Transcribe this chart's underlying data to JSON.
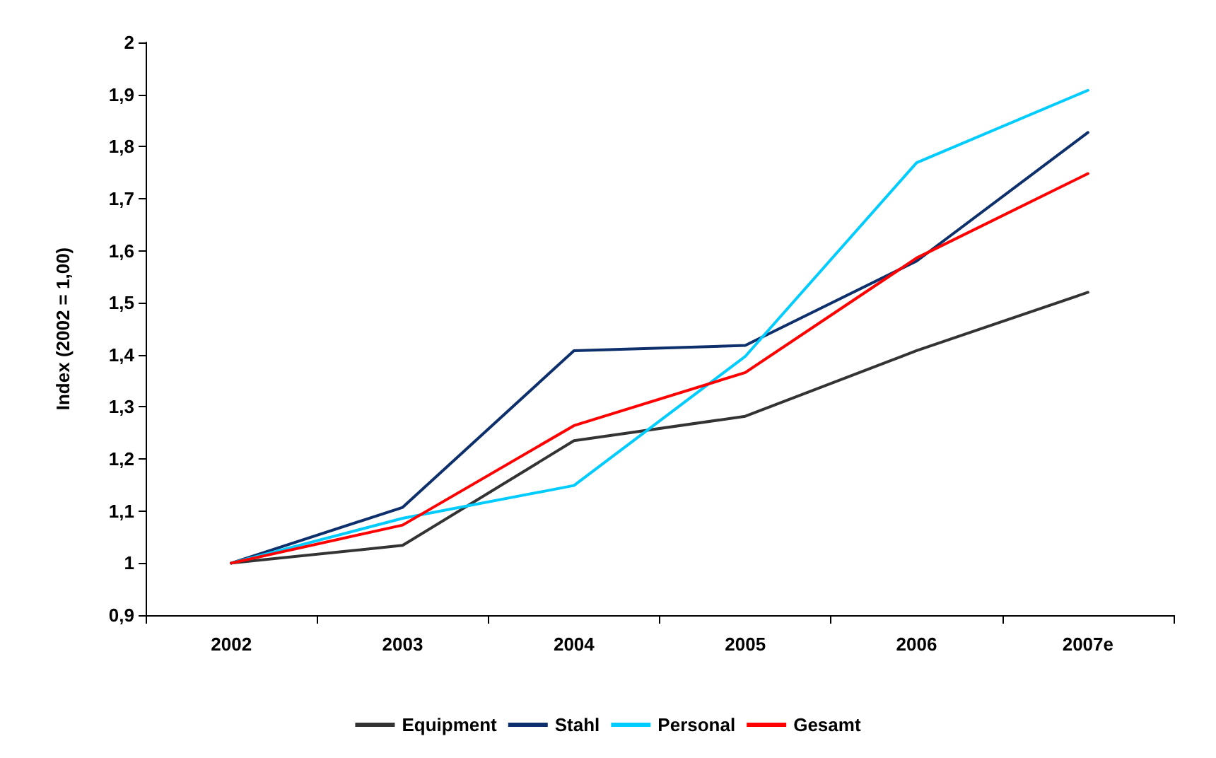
{
  "chart_data": {
    "type": "line",
    "ylabel": "Index (2002 = 1,00)",
    "categories": [
      "2002",
      "2003",
      "2004",
      "2005",
      "2006",
      "2007e"
    ],
    "series": [
      {
        "name": "Equipment",
        "color": "#333333",
        "values": [
          1.0,
          1.034,
          1.235,
          1.282,
          1.408,
          1.52
        ]
      },
      {
        "name": "Stahl",
        "color": "#0d2f6b",
        "values": [
          1.0,
          1.107,
          1.408,
          1.418,
          1.58,
          1.827
        ]
      },
      {
        "name": "Personal",
        "color": "#00ccff",
        "values": [
          1.0,
          1.086,
          1.149,
          1.397,
          1.769,
          1.908
        ]
      },
      {
        "name": "Gesamt",
        "color": "#ff0000",
        "values": [
          1.0,
          1.073,
          1.264,
          1.366,
          1.586,
          1.748
        ]
      }
    ],
    "ylim": [
      0.9,
      2
    ],
    "yticks": [
      {
        "value": 0.9,
        "label": "0,9"
      },
      1,
      {
        "value": 1.1,
        "label": "1,1"
      },
      {
        "value": 1.2,
        "label": "1,2"
      },
      {
        "value": 1.3,
        "label": "1,3"
      },
      {
        "value": 1.4,
        "label": "1,4"
      },
      {
        "value": 1.5,
        "label": "1,5"
      },
      {
        "value": 1.6,
        "label": "1,6"
      },
      {
        "value": 1.7,
        "label": "1,7"
      },
      {
        "value": 1.8,
        "label": "1,8"
      },
      {
        "value": 1.9,
        "label": "1,9"
      },
      2
    ],
    "grid": false,
    "legend": "bottom",
    "marker": "none",
    "line_style": "solid"
  }
}
